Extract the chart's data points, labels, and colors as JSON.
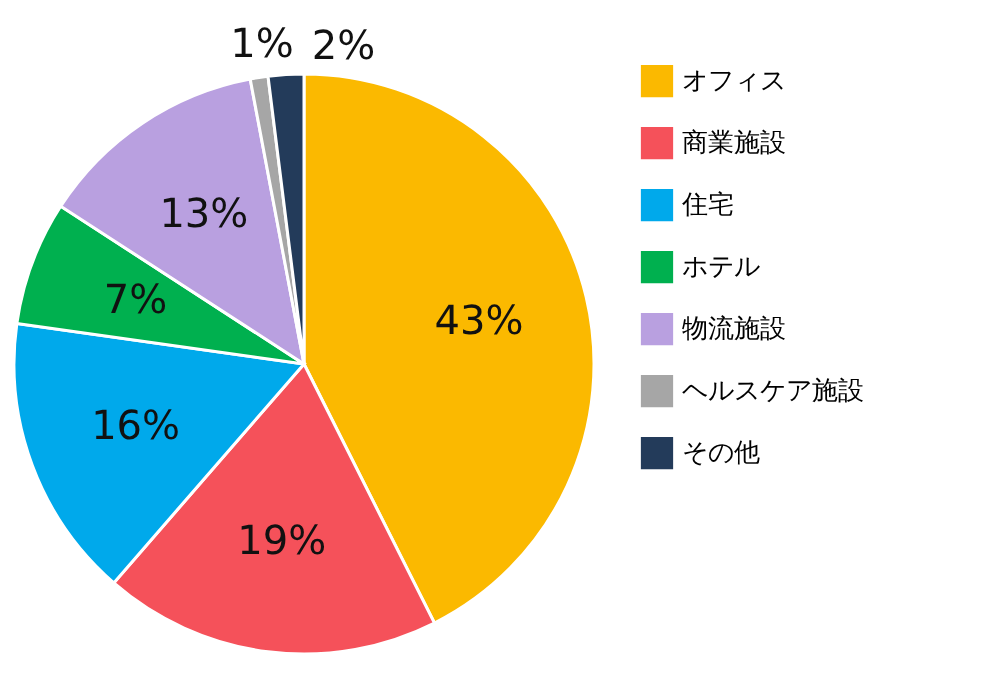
{
  "chart_data": {
    "type": "pie",
    "categories": [
      "オフィス",
      "商業施設",
      "住宅",
      "ホテル",
      "物流施設",
      "ヘルスケア施設",
      "その他"
    ],
    "values": [
      43,
      19,
      16,
      7,
      13,
      1,
      2
    ],
    "colors": [
      "#fbb900",
      "#f5515a",
      "#00a9eb",
      "#00b04f",
      "#b9a0e0",
      "#a6a6a6",
      "#233b5a"
    ],
    "value_labels": [
      "43%",
      "19%",
      "16%",
      "7%",
      "13%",
      "1%",
      "2%"
    ],
    "legend": "right"
  }
}
